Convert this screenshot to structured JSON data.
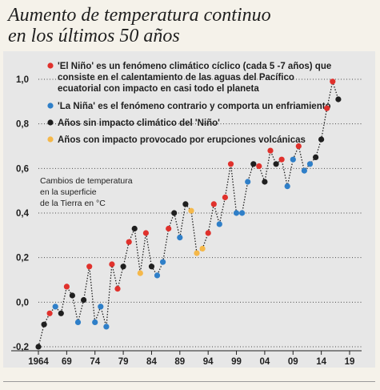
{
  "header": {
    "title_line1": "Aumento de temperatura continuo",
    "title_line2": "en los últimos 50 años"
  },
  "legend": {
    "nino_line1": "'El Niño' es un fenómeno climático cíclico (cada 5 -7 años) que",
    "nino_line2": "consiste en el calentamiento de las aguas del Pacífico",
    "nino_line3": "ecuatorial con impacto en casi todo el planeta",
    "nina": "'La Niña' es el fenómeno contrario y comporta un enfriamiento",
    "neutral": "Años sin impacto climático del 'Niño'",
    "volcanic": "Años con impacto provocado por erupciones volcánicas"
  },
  "chart_data": {
    "type": "scatter",
    "ylabel_lines": [
      "Cambios de temperatura",
      "en la superficie",
      "de la Tierra en °C"
    ],
    "xlim": [
      1964,
      2019
    ],
    "ylim": [
      -0.2,
      1.0
    ],
    "x_ticks": [
      "1964",
      "69",
      "74",
      "79",
      "84",
      "89",
      "94",
      "99",
      "04",
      "09",
      "14",
      "19"
    ],
    "x_tick_values": [
      1964,
      1969,
      1974,
      1979,
      1984,
      1989,
      1994,
      1999,
      2004,
      2009,
      2014,
      2019
    ],
    "y_ticks": [
      "-0,2",
      "0,0",
      "0,2",
      "0,4",
      "0,6",
      "0,8",
      "1,0"
    ],
    "y_tick_values": [
      -0.2,
      0.0,
      0.2,
      0.4,
      0.6,
      0.8,
      1.0
    ],
    "grid": "horizontal dotted",
    "colors": {
      "nino": "#e0312c",
      "nina": "#2f7fc8",
      "neutral": "#1f1f1f",
      "volcanic": "#f5b84a",
      "line": "#1f1f1f"
    },
    "points": [
      {
        "year": 1964,
        "value": -0.2,
        "type": "neutral"
      },
      {
        "year": 1965,
        "value": -0.1,
        "type": "neutral"
      },
      {
        "year": 1966,
        "value": -0.05,
        "type": "nino"
      },
      {
        "year": 1967,
        "value": -0.02,
        "type": "nina"
      },
      {
        "year": 1968,
        "value": -0.05,
        "type": "neutral"
      },
      {
        "year": 1969,
        "value": 0.07,
        "type": "nino"
      },
      {
        "year": 1970,
        "value": 0.03,
        "type": "neutral"
      },
      {
        "year": 1971,
        "value": -0.09,
        "type": "nina"
      },
      {
        "year": 1972,
        "value": 0.01,
        "type": "neutral"
      },
      {
        "year": 1973,
        "value": 0.16,
        "type": "nino"
      },
      {
        "year": 1974,
        "value": -0.09,
        "type": "nina"
      },
      {
        "year": 1975,
        "value": -0.02,
        "type": "nina"
      },
      {
        "year": 1976,
        "value": -0.11,
        "type": "nina"
      },
      {
        "year": 1977,
        "value": 0.17,
        "type": "nino"
      },
      {
        "year": 1978,
        "value": 0.06,
        "type": "nino"
      },
      {
        "year": 1979,
        "value": 0.16,
        "type": "neutral"
      },
      {
        "year": 1980,
        "value": 0.27,
        "type": "nino"
      },
      {
        "year": 1981,
        "value": 0.33,
        "type": "neutral"
      },
      {
        "year": 1982,
        "value": 0.13,
        "type": "volcanic"
      },
      {
        "year": 1983,
        "value": 0.31,
        "type": "nino"
      },
      {
        "year": 1984,
        "value": 0.16,
        "type": "neutral"
      },
      {
        "year": 1985,
        "value": 0.12,
        "type": "nina"
      },
      {
        "year": 1986,
        "value": 0.18,
        "type": "nina"
      },
      {
        "year": 1987,
        "value": 0.33,
        "type": "nino"
      },
      {
        "year": 1988,
        "value": 0.4,
        "type": "neutral"
      },
      {
        "year": 1989,
        "value": 0.29,
        "type": "nina"
      },
      {
        "year": 1990,
        "value": 0.44,
        "type": "neutral"
      },
      {
        "year": 1991,
        "value": 0.41,
        "type": "volcanic"
      },
      {
        "year": 1992,
        "value": 0.22,
        "type": "volcanic"
      },
      {
        "year": 1993,
        "value": 0.24,
        "type": "volcanic"
      },
      {
        "year": 1994,
        "value": 0.31,
        "type": "nino"
      },
      {
        "year": 1995,
        "value": 0.44,
        "type": "nino"
      },
      {
        "year": 1996,
        "value": 0.35,
        "type": "nina"
      },
      {
        "year": 1997,
        "value": 0.47,
        "type": "nino"
      },
      {
        "year": 1998,
        "value": 0.62,
        "type": "nino"
      },
      {
        "year": 1999,
        "value": 0.4,
        "type": "nina"
      },
      {
        "year": 2000,
        "value": 0.4,
        "type": "nina"
      },
      {
        "year": 2001,
        "value": 0.54,
        "type": "nina"
      },
      {
        "year": 2002,
        "value": 0.62,
        "type": "neutral"
      },
      {
        "year": 2003,
        "value": 0.61,
        "type": "nino"
      },
      {
        "year": 2004,
        "value": 0.54,
        "type": "neutral"
      },
      {
        "year": 2005,
        "value": 0.68,
        "type": "nino"
      },
      {
        "year": 2006,
        "value": 0.62,
        "type": "neutral"
      },
      {
        "year": 2007,
        "value": 0.64,
        "type": "nino"
      },
      {
        "year": 2008,
        "value": 0.52,
        "type": "nina"
      },
      {
        "year": 2009,
        "value": 0.64,
        "type": "nina"
      },
      {
        "year": 2010,
        "value": 0.7,
        "type": "nino"
      },
      {
        "year": 2011,
        "value": 0.59,
        "type": "nina"
      },
      {
        "year": 2012,
        "value": 0.62,
        "type": "nina"
      },
      {
        "year": 2013,
        "value": 0.65,
        "type": "neutral"
      },
      {
        "year": 2014,
        "value": 0.73,
        "type": "neutral"
      },
      {
        "year": 2015,
        "value": 0.87,
        "type": "nino"
      },
      {
        "year": 2016,
        "value": 0.99,
        "type": "nino"
      },
      {
        "year": 2017,
        "value": 0.91,
        "type": "neutral"
      }
    ]
  }
}
